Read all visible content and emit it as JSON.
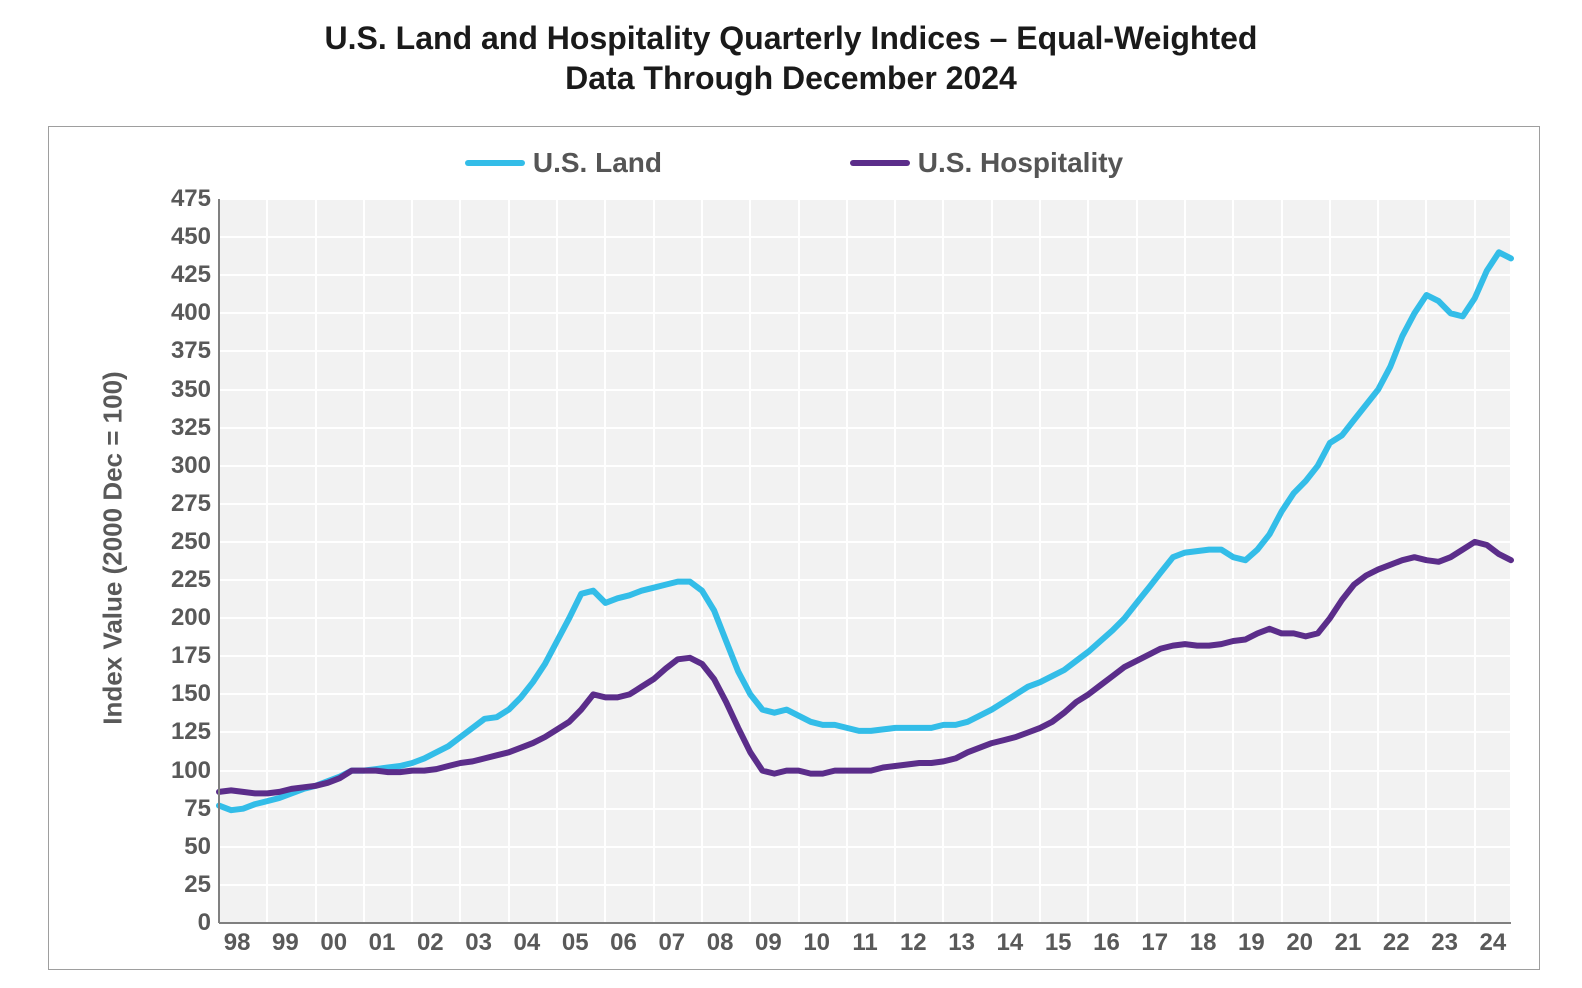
{
  "title": {
    "line1": "U.S. Land and Hospitality Quarterly Indices – Equal-Weighted",
    "line2": "Data Through December 2024",
    "fontsize": 32,
    "color": "#1a1a1a"
  },
  "chart": {
    "type": "line",
    "background_color": "#ffffff",
    "plot_background_color": "#f2f2f2",
    "grid_color": "#ffffff",
    "border_color": "#9e9e9e",
    "tick_label_color": "#595959",
    "tick_label_fontsize": 24,
    "y_axis": {
      "title": "Index Value (2000 Dec = 100)",
      "title_fontsize": 26,
      "min": 0,
      "max": 475,
      "tick_step": 25,
      "ticks": [
        0,
        25,
        50,
        75,
        100,
        125,
        150,
        175,
        200,
        225,
        250,
        275,
        300,
        325,
        350,
        375,
        400,
        425,
        450,
        475
      ]
    },
    "x_axis": {
      "labels": [
        "98",
        "99",
        "00",
        "01",
        "02",
        "03",
        "04",
        "05",
        "06",
        "07",
        "08",
        "09",
        "10",
        "11",
        "12",
        "13",
        "14",
        "15",
        "16",
        "17",
        "18",
        "19",
        "20",
        "21",
        "22",
        "23",
        "24"
      ],
      "start_year": 1998,
      "end_year_quarter": 2024.75,
      "quarters_per_label": 4
    },
    "legend": {
      "position": "top",
      "fontsize": 28,
      "color": "#555555",
      "items": [
        {
          "label": "U.S. Land",
          "color": "#33bde8",
          "line_width": 6
        },
        {
          "label": "U.S. Hospitality",
          "color": "#5b2d8a",
          "line_width": 6
        }
      ]
    },
    "series": [
      {
        "name": "U.S. Land",
        "color": "#33bde8",
        "line_width": 6,
        "values": [
          77,
          74,
          75,
          78,
          80,
          82,
          85,
          88,
          90,
          93,
          96,
          100,
          100,
          101,
          102,
          103,
          105,
          108,
          112,
          116,
          122,
          128,
          134,
          135,
          140,
          148,
          158,
          170,
          185,
          200,
          216,
          218,
          210,
          213,
          215,
          218,
          220,
          222,
          224,
          224,
          218,
          205,
          185,
          165,
          150,
          140,
          138,
          140,
          136,
          132,
          130,
          130,
          128,
          126,
          126,
          127,
          128,
          128,
          128,
          128,
          130,
          130,
          132,
          136,
          140,
          145,
          150,
          155,
          158,
          162,
          166,
          172,
          178,
          185,
          192,
          200,
          210,
          220,
          230,
          240,
          243,
          244,
          245,
          245,
          240,
          238,
          245,
          255,
          270,
          282,
          290,
          300,
          315,
          320,
          330,
          340,
          350,
          365,
          385,
          400,
          412,
          408,
          400,
          398,
          410,
          428,
          440,
          436
        ]
      },
      {
        "name": "U.S. Hospitality",
        "color": "#5b2d8a",
        "line_width": 6,
        "values": [
          86,
          87,
          86,
          85,
          85,
          86,
          88,
          89,
          90,
          92,
          95,
          100,
          100,
          100,
          99,
          99,
          100,
          100,
          101,
          103,
          105,
          106,
          108,
          110,
          112,
          115,
          118,
          122,
          127,
          132,
          140,
          150,
          148,
          148,
          150,
          155,
          160,
          167,
          173,
          174,
          170,
          160,
          145,
          128,
          112,
          100,
          98,
          100,
          100,
          98,
          98,
          100,
          100,
          100,
          100,
          102,
          103,
          104,
          105,
          105,
          106,
          108,
          112,
          115,
          118,
          120,
          122,
          125,
          128,
          132,
          138,
          145,
          150,
          156,
          162,
          168,
          172,
          176,
          180,
          182,
          183,
          182,
          182,
          183,
          185,
          186,
          190,
          193,
          190,
          190,
          188,
          190,
          200,
          212,
          222,
          228,
          232,
          235,
          238,
          240,
          238,
          237,
          240,
          245,
          250,
          248,
          242,
          238
        ]
      }
    ]
  }
}
